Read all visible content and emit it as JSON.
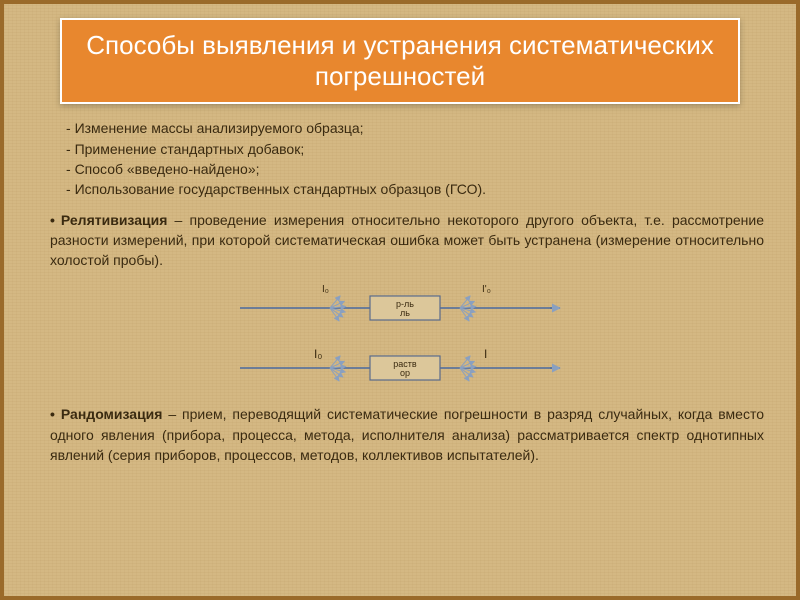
{
  "title": "Способы выявления и устранения систематических погрешностей",
  "bullets": [
    "Изменение массы анализируемого образца;",
    "Применение стандартных добавок;",
    "Способ «введено-найдено»;",
    "Использование государственных стандартных образцов (ГСО)."
  ],
  "para1_term": "Релятивизация",
  "para1_rest": " – проведение измерения относительно некоторого другого объекта, т.е. рассмотрение разности измерений, при которой систематическая ошибка может быть устранена (измерение относительно холостой пробы).",
  "para2_term": "Рандомизация",
  "para2_rest": " – прием, переводящий систематические погрешности в разряд случайных, когда вместо одного явления (прибора, процесса, метода, исполнителя анализа) рассматривается спектр однотипных явлений (серия приборов, процессов, методов, коллективов испытателей).",
  "diagram": {
    "box_fill": "#dcc79a",
    "box_stroke": "#5a6b8c",
    "line_color": "#4a6aa0",
    "arrow_color": "#8aa0c0",
    "label_top_left": "I₀",
    "label_top_right": "I'₀",
    "label_top_box": "р-ль",
    "label_bot_left": "I₀",
    "label_bot_right": "I",
    "label_bot_box": "раств ор"
  }
}
